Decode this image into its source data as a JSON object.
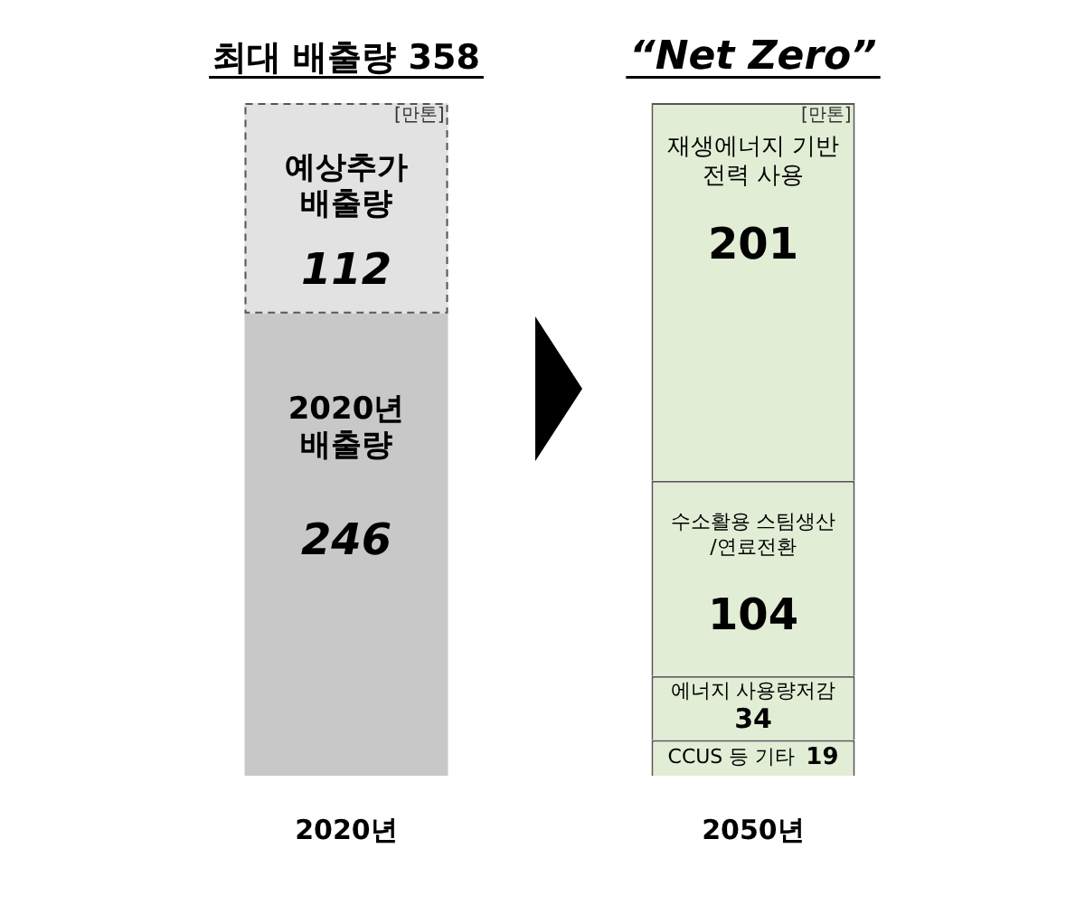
{
  "chart_data": {
    "type": "bar",
    "stacked": true,
    "categories": [
      "2020년",
      "2050년"
    ],
    "series": [
      {
        "name": "2020년 배출량",
        "color": "#c8c8c8",
        "values": [
          246,
          null
        ]
      },
      {
        "name": "예상추가 배출량",
        "color": "#e2e2e2",
        "values": [
          112,
          null
        ],
        "line_style": "dashed"
      },
      {
        "name": "CCUS 등 기타",
        "color": "#e2edd5",
        "values": [
          null,
          19
        ]
      },
      {
        "name": "에너지 사용량저감",
        "color": "#e2edd5",
        "values": [
          null,
          34
        ]
      },
      {
        "name": "수소활용 스팀생산 /연료전환",
        "color": "#e2edd5",
        "values": [
          null,
          104
        ]
      },
      {
        "name": "재생에너지 기반 전력 사용",
        "color": "#e2edd5",
        "values": [
          null,
          201
        ]
      }
    ],
    "data_labels": true,
    "legend": false,
    "grid": false,
    "annotations": [
      "최대 배출량 358",
      "“Net Zero”",
      {
        "text": "[만톤]",
        "x": "2020년",
        "y": 358
      },
      {
        "text": "[만톤]",
        "x": "2050년",
        "y": 358
      }
    ]
  }
}
